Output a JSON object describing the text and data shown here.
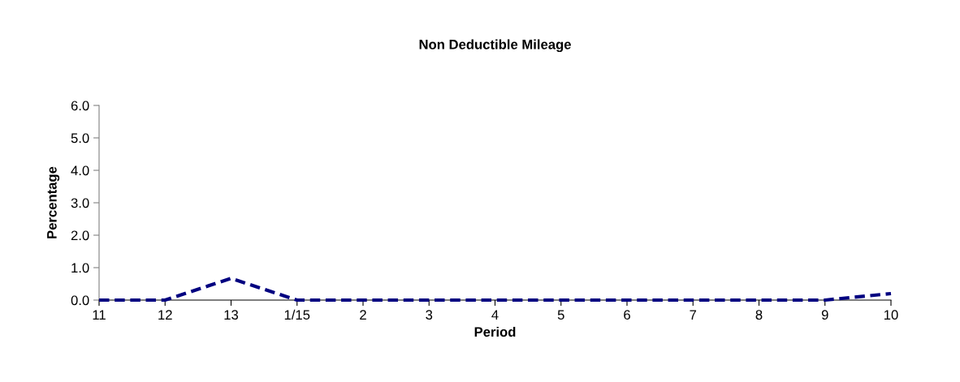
{
  "chart_data": {
    "type": "line",
    "title": "Non Deductible Mileage",
    "xlabel": "Period",
    "ylabel": "Percentage",
    "categories": [
      "11",
      "12",
      "13",
      "1/15",
      "2",
      "3",
      "4",
      "5",
      "6",
      "7",
      "8",
      "9",
      "10"
    ],
    "series": [
      {
        "color": "#000080",
        "values": [
          0,
          0,
          0.67,
          0,
          0,
          0,
          0,
          0,
          0,
          0,
          0,
          0,
          0.2
        ]
      }
    ],
    "ylim": [
      0,
      6
    ],
    "yticks": [
      {
        "value": 0,
        "label": "0.0"
      },
      {
        "value": 1,
        "label": "1.0"
      },
      {
        "value": 2,
        "label": "2.0"
      },
      {
        "value": 3,
        "label": "3.0"
      },
      {
        "value": 4,
        "label": "4.0"
      },
      {
        "value": 5,
        "label": "5.0"
      },
      {
        "value": 6,
        "label": "6.0"
      }
    ],
    "line_style": "dashed",
    "marker": "none",
    "grid": false
  }
}
